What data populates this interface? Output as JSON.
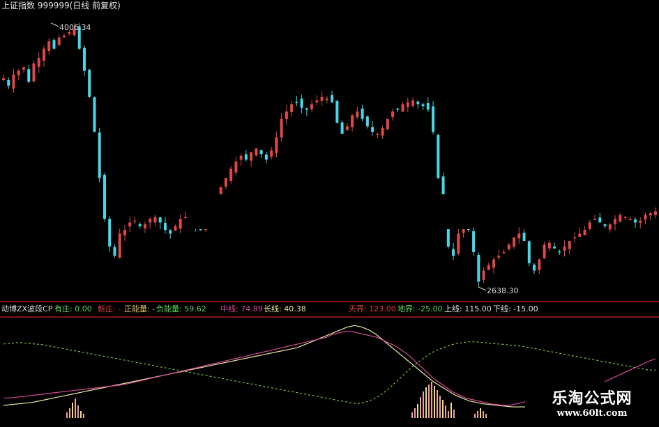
{
  "header": {
    "title": "上证指数 999999(日线 前复权)"
  },
  "annotations": {
    "high": "4006.34",
    "low": "2638.30"
  },
  "indicator": {
    "name": "动博ZX波段CP",
    "items": [
      {
        "text": "有庄: 0.00",
        "color": "#5fd35f"
      },
      {
        "text": "新庄: -",
        "color": "#e03c3c"
      },
      {
        "text": "正能量: -",
        "color": "#e0c060"
      },
      {
        "text": "负能量: 59.62",
        "color": "#5fd35f"
      },
      {
        "text": "中线: 74.89",
        "color": "#d94a9a"
      },
      {
        "text": "长线: 40.38",
        "color": "#e8e8a0"
      },
      {
        "text": "天界: 123.00",
        "color": "#e03c3c"
      },
      {
        "text": "地界: -25.00",
        "color": "#5fd35f"
      },
      {
        "text": "上线: 115.00",
        "color": "#e0e0e0"
      },
      {
        "text": "下线: -15.00",
        "color": "#e0e0e0"
      }
    ]
  },
  "watermark": {
    "line1": "乐淘公式网",
    "line2": "www.60lt.com"
  },
  "colors": {
    "up": "#e04848",
    "down": "#44d8e8",
    "mid_line": "#d94a9a",
    "long_line": "#e8e8a0",
    "dotted": "#7bbf4a",
    "divider": "#b01818",
    "vol_up": "#f0a0a0",
    "vol_yellow": "#f0e070"
  },
  "chart_data": {
    "type": "candlestick",
    "price_range": [
      2600,
      4050
    ],
    "price_high": 4006.34,
    "price_low": 2638.3,
    "closes": [
      3740,
      3700,
      3760,
      3780,
      3800,
      3720,
      3820,
      3850,
      3900,
      3940,
      3900,
      3960,
      3970,
      3990,
      4006,
      3900,
      3780,
      3640,
      3450,
      3200,
      2980,
      2830,
      2780,
      2900,
      2920,
      2960,
      2970,
      2940,
      2950,
      2980,
      2990,
      2960,
      2920,
      2900,
      2940,
      2980,
      2990,
      2960,
      2930,
      2920,
      2950,
      3000,
      3080,
      3150,
      3200,
      3250,
      3290,
      3320,
      3300,
      3340,
      3360,
      3330,
      3300,
      3350,
      3420,
      3520,
      3560,
      3600,
      3610,
      3580,
      3570,
      3600,
      3620,
      3640,
      3630,
      3610,
      3500,
      3440,
      3480,
      3540,
      3560,
      3520,
      3480,
      3450,
      3440,
      3470,
      3520,
      3560,
      3570,
      3600,
      3610,
      3620,
      3600,
      3590,
      3570,
      3450,
      3200,
      3000,
      2830,
      2780,
      2900,
      2940,
      2920,
      2800,
      2640,
      2700,
      2730,
      2760,
      2780,
      2800,
      2840,
      2880,
      2900,
      2860,
      2740,
      2700,
      2760,
      2840,
      2850,
      2820,
      2800,
      2830,
      2860,
      2880,
      2900,
      2920,
      2960,
      2980,
      2960,
      2940,
      2950,
      2980,
      3000,
      2990,
      2980,
      2960,
      2970,
      3000,
      3010,
      3020
    ],
    "mid_line": [
      22,
      22,
      23,
      24,
      25,
      26,
      27,
      28,
      29,
      30,
      31,
      32,
      33,
      34,
      35,
      36,
      37,
      38,
      39,
      40,
      42,
      44,
      46,
      48,
      50,
      52,
      54,
      56,
      58,
      60,
      62,
      64,
      66,
      68,
      70,
      72,
      74,
      76,
      78,
      80,
      82,
      84,
      86,
      88,
      90,
      92,
      94,
      96,
      98,
      100,
      102,
      104,
      108,
      110,
      112,
      112,
      110,
      108,
      106,
      104,
      100,
      96,
      92,
      86,
      80,
      72,
      64,
      56,
      48,
      42,
      36,
      30,
      26,
      22,
      20,
      18,
      16,
      14,
      13,
      12,
      12,
      14,
      16,
      18,
      20,
      22,
      24,
      26,
      28,
      30,
      32,
      34,
      36,
      38,
      40,
      44,
      48,
      52,
      56,
      60,
      64,
      68,
      72,
      74.89
    ],
    "long_line": [
      12,
      13,
      14,
      15,
      16,
      18,
      20,
      22,
      24,
      26,
      28,
      30,
      32,
      34,
      36,
      38,
      40,
      42,
      44,
      46,
      48,
      50,
      52,
      54,
      56,
      58,
      60,
      62,
      64,
      66,
      68,
      70,
      72,
      74,
      76,
      78,
      80,
      82,
      84,
      86,
      88,
      90,
      94,
      98,
      102,
      106,
      110,
      114,
      118,
      120,
      118,
      114,
      108,
      100,
      92,
      84,
      76,
      68,
      60,
      52,
      44,
      38,
      32,
      26,
      22,
      18,
      16,
      14,
      13,
      12,
      11,
      10,
      10,
      10,
      11,
      12,
      13,
      14,
      15,
      16,
      18,
      20,
      22,
      24,
      26,
      28,
      30,
      32,
      34,
      36,
      38,
      40.38
    ],
    "dotted_line": [
      95,
      96,
      97,
      96,
      95,
      94,
      92,
      90,
      88,
      86,
      84,
      82,
      80,
      78,
      76,
      74,
      72,
      70,
      68,
      66,
      64,
      62,
      60,
      58,
      56,
      54,
      52,
      50,
      48,
      46,
      44,
      42,
      40,
      38,
      36,
      34,
      32,
      30,
      28,
      26,
      24,
      22,
      20,
      18,
      16,
      14,
      16,
      20,
      26,
      34,
      44,
      54,
      64,
      72,
      80,
      86,
      90,
      94,
      96,
      98,
      98,
      97,
      96,
      95,
      94,
      93,
      92,
      90,
      88,
      86,
      84,
      82,
      80,
      78,
      76,
      74,
      72,
      70,
      68,
      66,
      64,
      62,
      60,
      59.62
    ],
    "vol_left": [
      8,
      14,
      22,
      28,
      18,
      10,
      6
    ],
    "vol_right": [
      8,
      14,
      20,
      30,
      38,
      44,
      48,
      52,
      46,
      40,
      32,
      26,
      18,
      10,
      22,
      12
    ],
    "vol_small": [
      6,
      10,
      14,
      10,
      6
    ]
  }
}
